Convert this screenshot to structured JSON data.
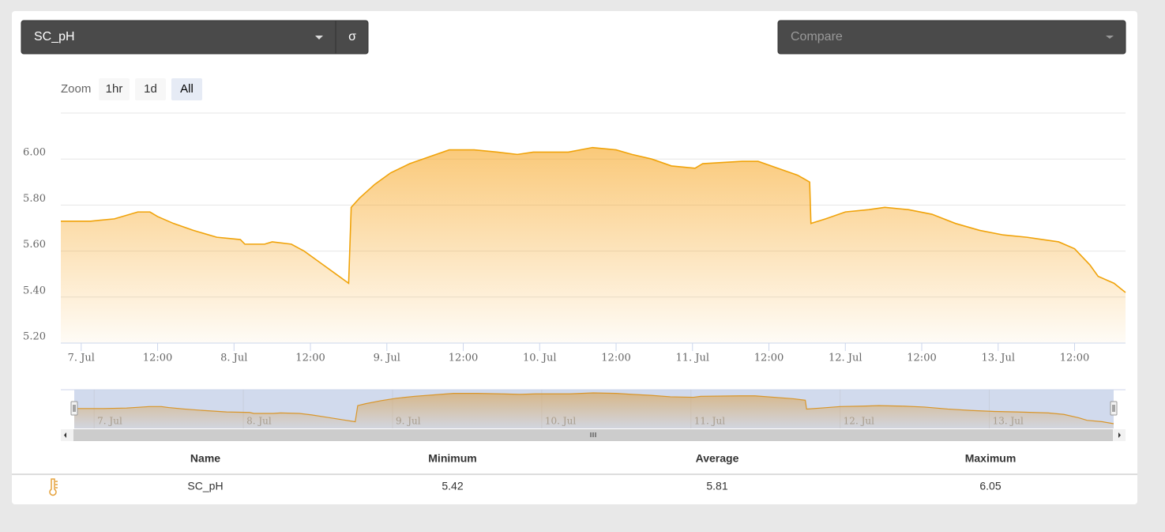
{
  "selector": {
    "value": "SC_pH",
    "sigma": "σ",
    "compare": "Compare"
  },
  "zoom": {
    "label": "Zoom",
    "buttons": [
      "1hr",
      "1d",
      "All"
    ],
    "selected": 2
  },
  "chart_data": {
    "type": "area",
    "color": "#f0a30a",
    "x": [
      -3.2,
      1.5,
      5.2,
      8.9,
      10.8,
      12,
      14.5,
      17.6,
      21.3,
      25,
      25.7,
      28.8,
      30,
      33,
      35,
      37.5,
      40,
      42,
      42.4,
      43.7,
      46.1,
      48.6,
      51.6,
      54.7,
      57.8,
      61.7,
      65.4,
      68.5,
      71,
      76.5,
      80.3,
      84,
      86.5,
      89.6,
      92.7,
      96.4,
      97.6,
      103.8,
      106.3,
      109.4,
      112.5,
      114.4,
      114.6,
      116.9,
      120,
      123.7,
      126.2,
      129.9,
      133.6,
      137.3,
      141.1,
      144.8,
      148.5,
      151,
      153.5,
      156,
      158.4,
      159.7,
      162.2,
      164
    ],
    "values": [
      5.73,
      5.73,
      5.74,
      5.77,
      5.77,
      5.75,
      5.72,
      5.69,
      5.66,
      5.65,
      5.63,
      5.63,
      5.64,
      5.63,
      5.6,
      5.55,
      5.5,
      5.46,
      5.79,
      5.83,
      5.89,
      5.94,
      5.98,
      6.01,
      6.04,
      6.04,
      6.03,
      6.02,
      6.03,
      6.03,
      6.05,
      6.04,
      6.02,
      6.0,
      5.97,
      5.96,
      5.98,
      5.99,
      5.99,
      5.96,
      5.93,
      5.9,
      5.72,
      5.74,
      5.77,
      5.78,
      5.79,
      5.78,
      5.76,
      5.72,
      5.69,
      5.67,
      5.66,
      5.65,
      5.64,
      5.61,
      5.54,
      5.49,
      5.46,
      5.42
    ],
    "xlim": [
      -3.2,
      164
    ],
    "xticks": [
      {
        "value": 0,
        "label": "7. Jul"
      },
      {
        "value": 12,
        "label": "12:00"
      },
      {
        "value": 24,
        "label": "8. Jul"
      },
      {
        "value": 36,
        "label": "12:00"
      },
      {
        "value": 48,
        "label": "9. Jul"
      },
      {
        "value": 60,
        "label": "12:00"
      },
      {
        "value": 72,
        "label": "10. Jul"
      },
      {
        "value": 84,
        "label": "12:00"
      },
      {
        "value": 96,
        "label": "11. Jul"
      },
      {
        "value": 108,
        "label": "12:00"
      },
      {
        "value": 120,
        "label": "12. Jul"
      },
      {
        "value": 132,
        "label": "12:00"
      },
      {
        "value": 144,
        "label": "13. Jul"
      },
      {
        "value": 156,
        "label": "12:00"
      }
    ],
    "ylim": [
      5.2,
      6.2
    ],
    "yticks": [
      {
        "value": 5.2,
        "label": "5.20"
      },
      {
        "value": 5.4,
        "label": "5.40"
      },
      {
        "value": 5.6,
        "label": "5.60"
      },
      {
        "value": 5.8,
        "label": "5.80"
      },
      {
        "value": 6.0,
        "label": "6.00"
      }
    ],
    "grid": true
  },
  "table": {
    "header": [
      "Name",
      "Minimum",
      "Average",
      "Maximum"
    ],
    "rows": [
      [
        "SC_pH",
        "5.42",
        "5.81",
        "6.05"
      ]
    ]
  }
}
